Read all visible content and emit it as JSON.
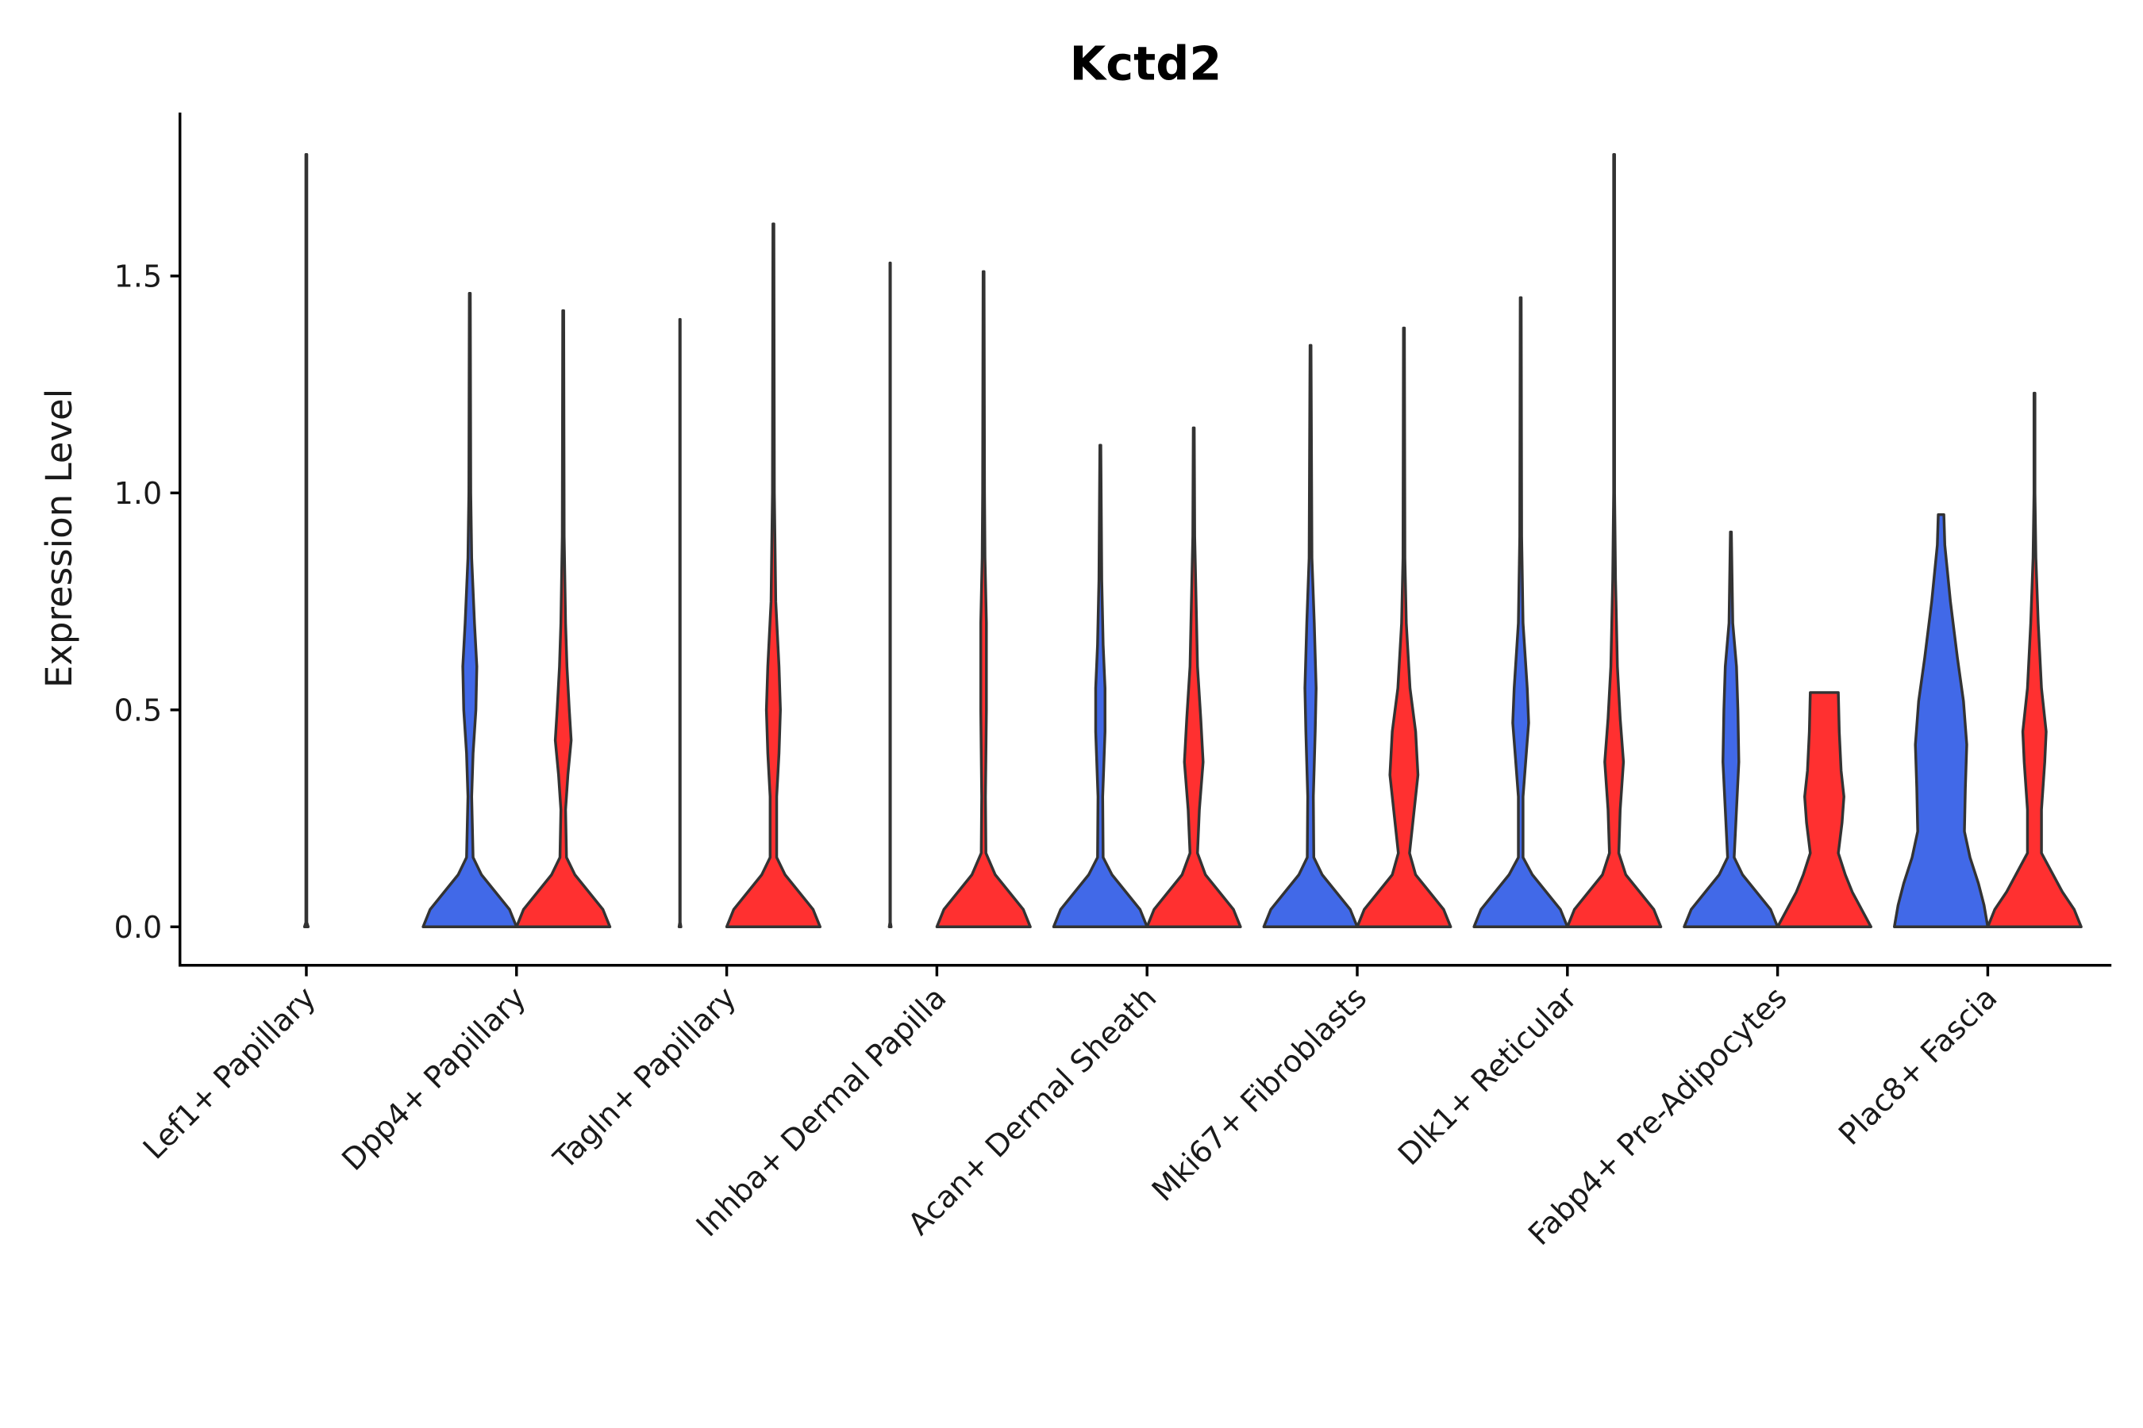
{
  "chart_data": {
    "type": "violin",
    "title": "Kctd2",
    "xlabel": "",
    "ylabel": "Expression Level",
    "ylim": [
      -0.09,
      1.88
    ],
    "yticks": [
      "0.0",
      "0.5",
      "1.0",
      "1.5"
    ],
    "ytick_values": [
      0,
      0.5,
      1.0,
      1.5
    ],
    "grid": false,
    "colors": {
      "split_a": "#4169E8",
      "split_b": "#FF3030",
      "outline": "#333333"
    },
    "categories": [
      "Lef1+ Papillary",
      "Dpp4+ Papillary",
      "Tagln+ Papillary",
      "Inhba+ Dermal Papilla",
      "Acan+ Dermal Sheath",
      "Mki67+ Fibroblasts",
      "Dlk1+ Reticular",
      "Fabp4+ Pre-Adipocytes",
      "Plac8+ Fascia"
    ],
    "violins": [
      {
        "category": 0,
        "side": "center",
        "max": 1.78,
        "profile": [
          [
            0,
            0.02
          ],
          [
            0.01,
            0.005
          ],
          [
            1.78,
            0.005
          ]
        ]
      },
      {
        "category": 1,
        "side": "a",
        "max": 1.46,
        "profile": [
          [
            0,
            1
          ],
          [
            0.04,
            0.85
          ],
          [
            0.08,
            0.55
          ],
          [
            0.12,
            0.25
          ],
          [
            0.16,
            0.07
          ],
          [
            0.3,
            0.04
          ],
          [
            0.4,
            0.07
          ],
          [
            0.5,
            0.13
          ],
          [
            0.6,
            0.15
          ],
          [
            0.7,
            0.1
          ],
          [
            0.85,
            0.04
          ],
          [
            1.0,
            0.02
          ],
          [
            1.46,
            0.01
          ]
        ]
      },
      {
        "category": 1,
        "side": "b",
        "max": 1.42,
        "profile": [
          [
            0,
            1
          ],
          [
            0.04,
            0.85
          ],
          [
            0.08,
            0.55
          ],
          [
            0.12,
            0.25
          ],
          [
            0.16,
            0.07
          ],
          [
            0.27,
            0.05
          ],
          [
            0.35,
            0.1
          ],
          [
            0.43,
            0.17
          ],
          [
            0.5,
            0.13
          ],
          [
            0.6,
            0.08
          ],
          [
            0.7,
            0.05
          ],
          [
            0.9,
            0.02
          ],
          [
            1.42,
            0.01
          ]
        ]
      },
      {
        "category": 2,
        "side": "a",
        "max": 1.4,
        "profile": [
          [
            0,
            0.02
          ],
          [
            0.01,
            0.005
          ],
          [
            1.4,
            0.005
          ]
        ]
      },
      {
        "category": 2,
        "side": "b",
        "max": 1.62,
        "profile": [
          [
            0,
            1
          ],
          [
            0.04,
            0.85
          ],
          [
            0.08,
            0.55
          ],
          [
            0.12,
            0.25
          ],
          [
            0.16,
            0.07
          ],
          [
            0.3,
            0.07
          ],
          [
            0.4,
            0.12
          ],
          [
            0.5,
            0.15
          ],
          [
            0.6,
            0.12
          ],
          [
            0.75,
            0.05
          ],
          [
            1.0,
            0.02
          ],
          [
            1.62,
            0.01
          ]
        ]
      },
      {
        "category": 3,
        "side": "a",
        "max": 1.53,
        "profile": [
          [
            0,
            0.02
          ],
          [
            0.01,
            0.005
          ],
          [
            1.53,
            0.005
          ]
        ]
      },
      {
        "category": 3,
        "side": "b",
        "max": 1.51,
        "profile": [
          [
            0,
            1
          ],
          [
            0.04,
            0.85
          ],
          [
            0.08,
            0.55
          ],
          [
            0.12,
            0.25
          ],
          [
            0.17,
            0.05
          ],
          [
            0.3,
            0.04
          ],
          [
            0.5,
            0.06
          ],
          [
            0.7,
            0.06
          ],
          [
            0.85,
            0.03
          ],
          [
            1.0,
            0.02
          ],
          [
            1.51,
            0.01
          ]
        ]
      },
      {
        "category": 4,
        "side": "a",
        "max": 1.11,
        "profile": [
          [
            0,
            1
          ],
          [
            0.04,
            0.85
          ],
          [
            0.08,
            0.55
          ],
          [
            0.12,
            0.25
          ],
          [
            0.16,
            0.06
          ],
          [
            0.3,
            0.05
          ],
          [
            0.45,
            0.1
          ],
          [
            0.55,
            0.1
          ],
          [
            0.65,
            0.06
          ],
          [
            0.8,
            0.03
          ],
          [
            1.11,
            0.01
          ]
        ]
      },
      {
        "category": 4,
        "side": "b",
        "max": 1.15,
        "profile": [
          [
            0,
            1
          ],
          [
            0.04,
            0.85
          ],
          [
            0.08,
            0.55
          ],
          [
            0.12,
            0.25
          ],
          [
            0.17,
            0.08
          ],
          [
            0.27,
            0.12
          ],
          [
            0.38,
            0.2
          ],
          [
            0.48,
            0.15
          ],
          [
            0.6,
            0.08
          ],
          [
            0.75,
            0.05
          ],
          [
            0.9,
            0.02
          ],
          [
            1.15,
            0.01
          ]
        ]
      },
      {
        "category": 5,
        "side": "a",
        "max": 1.34,
        "profile": [
          [
            0,
            1
          ],
          [
            0.04,
            0.85
          ],
          [
            0.08,
            0.55
          ],
          [
            0.12,
            0.25
          ],
          [
            0.16,
            0.07
          ],
          [
            0.3,
            0.06
          ],
          [
            0.45,
            0.1
          ],
          [
            0.55,
            0.12
          ],
          [
            0.7,
            0.08
          ],
          [
            0.85,
            0.03
          ],
          [
            1.34,
            0.01
          ]
        ]
      },
      {
        "category": 5,
        "side": "b",
        "max": 1.38,
        "profile": [
          [
            0,
            1
          ],
          [
            0.04,
            0.85
          ],
          [
            0.08,
            0.55
          ],
          [
            0.12,
            0.25
          ],
          [
            0.17,
            0.12
          ],
          [
            0.25,
            0.2
          ],
          [
            0.35,
            0.3
          ],
          [
            0.45,
            0.25
          ],
          [
            0.55,
            0.13
          ],
          [
            0.7,
            0.05
          ],
          [
            0.85,
            0.02
          ],
          [
            1.38,
            0.01
          ]
        ]
      },
      {
        "category": 6,
        "side": "a",
        "max": 1.45,
        "profile": [
          [
            0,
            1
          ],
          [
            0.04,
            0.85
          ],
          [
            0.08,
            0.55
          ],
          [
            0.12,
            0.25
          ],
          [
            0.16,
            0.05
          ],
          [
            0.3,
            0.05
          ],
          [
            0.4,
            0.12
          ],
          [
            0.47,
            0.17
          ],
          [
            0.55,
            0.14
          ],
          [
            0.7,
            0.05
          ],
          [
            0.9,
            0.02
          ],
          [
            1.45,
            0.01
          ]
        ]
      },
      {
        "category": 6,
        "side": "b",
        "max": 1.78,
        "profile": [
          [
            0,
            1
          ],
          [
            0.04,
            0.85
          ],
          [
            0.08,
            0.55
          ],
          [
            0.12,
            0.25
          ],
          [
            0.17,
            0.1
          ],
          [
            0.27,
            0.13
          ],
          [
            0.38,
            0.2
          ],
          [
            0.48,
            0.13
          ],
          [
            0.6,
            0.07
          ],
          [
            0.8,
            0.03
          ],
          [
            1.0,
            0.01
          ],
          [
            1.78,
            0.01
          ]
        ]
      },
      {
        "category": 7,
        "side": "a",
        "max": 0.91,
        "profile": [
          [
            0,
            1
          ],
          [
            0.04,
            0.85
          ],
          [
            0.08,
            0.55
          ],
          [
            0.12,
            0.25
          ],
          [
            0.16,
            0.07
          ],
          [
            0.27,
            0.12
          ],
          [
            0.38,
            0.17
          ],
          [
            0.5,
            0.15
          ],
          [
            0.6,
            0.12
          ],
          [
            0.7,
            0.04
          ],
          [
            0.91,
            0.01
          ]
        ]
      },
      {
        "category": 7,
        "side": "b",
        "max": 0.54,
        "profile": [
          [
            0,
            1
          ],
          [
            0.04,
            0.8
          ],
          [
            0.08,
            0.6
          ],
          [
            0.12,
            0.45
          ],
          [
            0.17,
            0.3
          ],
          [
            0.24,
            0.38
          ],
          [
            0.3,
            0.42
          ],
          [
            0.36,
            0.36
          ],
          [
            0.45,
            0.32
          ],
          [
            0.54,
            0.3
          ]
        ]
      },
      {
        "category": 8,
        "side": "a",
        "max": 0.95,
        "profile": [
          [
            0,
            1
          ],
          [
            0.05,
            0.92
          ],
          [
            0.1,
            0.8
          ],
          [
            0.16,
            0.62
          ],
          [
            0.22,
            0.5
          ],
          [
            0.32,
            0.52
          ],
          [
            0.42,
            0.55
          ],
          [
            0.52,
            0.48
          ],
          [
            0.62,
            0.35
          ],
          [
            0.75,
            0.2
          ],
          [
            0.88,
            0.08
          ],
          [
            0.95,
            0.06
          ]
        ]
      },
      {
        "category": 8,
        "side": "b",
        "max": 1.23,
        "profile": [
          [
            0,
            1
          ],
          [
            0.04,
            0.85
          ],
          [
            0.08,
            0.6
          ],
          [
            0.12,
            0.4
          ],
          [
            0.17,
            0.15
          ],
          [
            0.27,
            0.15
          ],
          [
            0.38,
            0.22
          ],
          [
            0.45,
            0.25
          ],
          [
            0.55,
            0.15
          ],
          [
            0.7,
            0.08
          ],
          [
            0.85,
            0.03
          ],
          [
            1.0,
            0.01
          ],
          [
            1.23,
            0.01
          ]
        ]
      }
    ]
  }
}
